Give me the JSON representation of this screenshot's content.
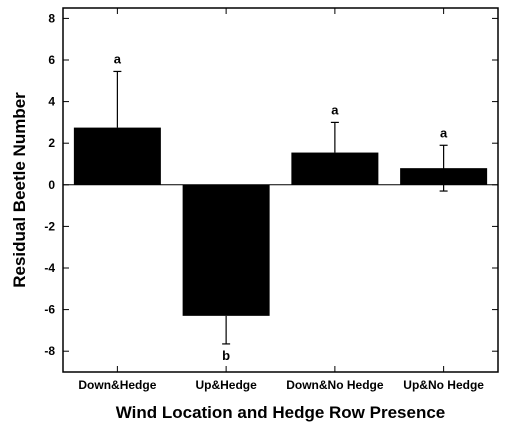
{
  "chart_data": {
    "type": "bar",
    "title": "",
    "xlabel": "Wind Location and Hedge Row Presence",
    "ylabel": "Residual Beetle Number",
    "ylim": [
      -9,
      8.5
    ],
    "yticks": [
      8,
      6,
      4,
      2,
      0,
      -2,
      -4,
      -6,
      -8
    ],
    "grid": false,
    "bar_color": "#000000",
    "categories": [
      "Down&Hedge",
      "Up&Hedge",
      "Down&No Hedge",
      "Up&No Hedge"
    ],
    "values": [
      2.75,
      -6.3,
      1.55,
      0.8
    ],
    "error": [
      2.7,
      1.35,
      1.45,
      1.1
    ],
    "error_direction": [
      "up",
      "down",
      "up",
      "both"
    ],
    "significance_labels": [
      "a",
      "b",
      "a",
      "a"
    ]
  }
}
